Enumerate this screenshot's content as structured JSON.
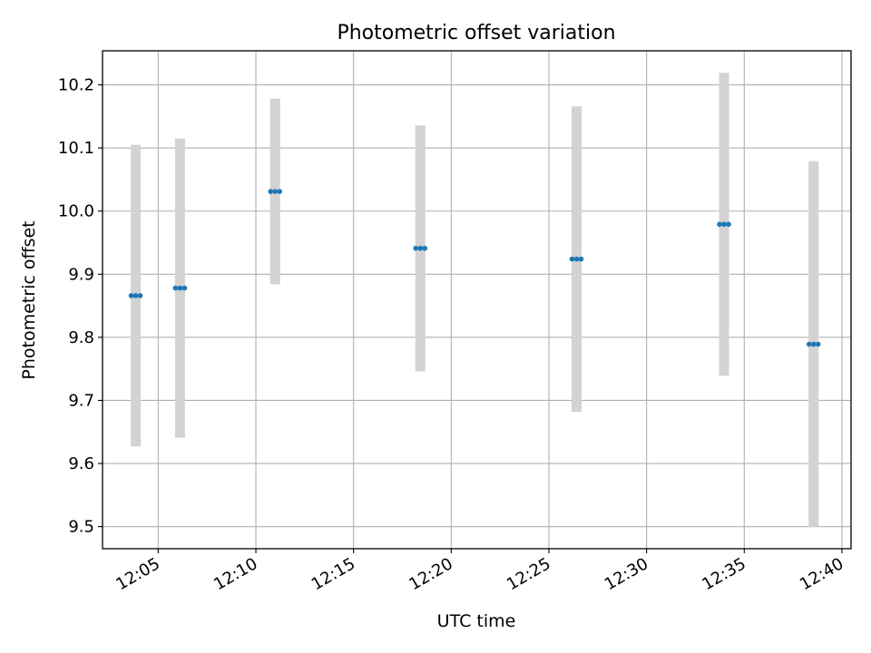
{
  "chart_data": {
    "type": "scatter",
    "title": "Photometric offset variation",
    "xlabel": "UTC time",
    "ylabel": "Photometric offset",
    "x_ticks": [
      "12:05",
      "12:10",
      "12:15",
      "12:20",
      "12:25",
      "12:30",
      "12:35",
      "12:40"
    ],
    "y_ticks": [
      "9.5",
      "9.6",
      "9.7",
      "9.8",
      "9.9",
      "10.0",
      "10.1",
      "10.2"
    ],
    "xlim": [
      "12:02:09",
      "12:40:28"
    ],
    "ylim": [
      9.465,
      10.254
    ],
    "grid": true,
    "series": [
      {
        "x": [
          "12:03:51",
          "12:06:07",
          "12:10:59",
          "12:18:25",
          "12:26:25",
          "12:33:58",
          "12:38:33"
        ],
        "y": [
          9.866,
          9.878,
          10.031,
          9.941,
          9.924,
          9.979,
          9.789
        ],
        "y_low": [
          9.627,
          9.641,
          9.884,
          9.746,
          9.682,
          9.739,
          9.499
        ],
        "y_high": [
          10.105,
          10.115,
          10.178,
          10.136,
          10.166,
          10.219,
          10.079
        ],
        "color": "#1f77b4",
        "errorbar_color": "#d3d3d3"
      }
    ]
  }
}
